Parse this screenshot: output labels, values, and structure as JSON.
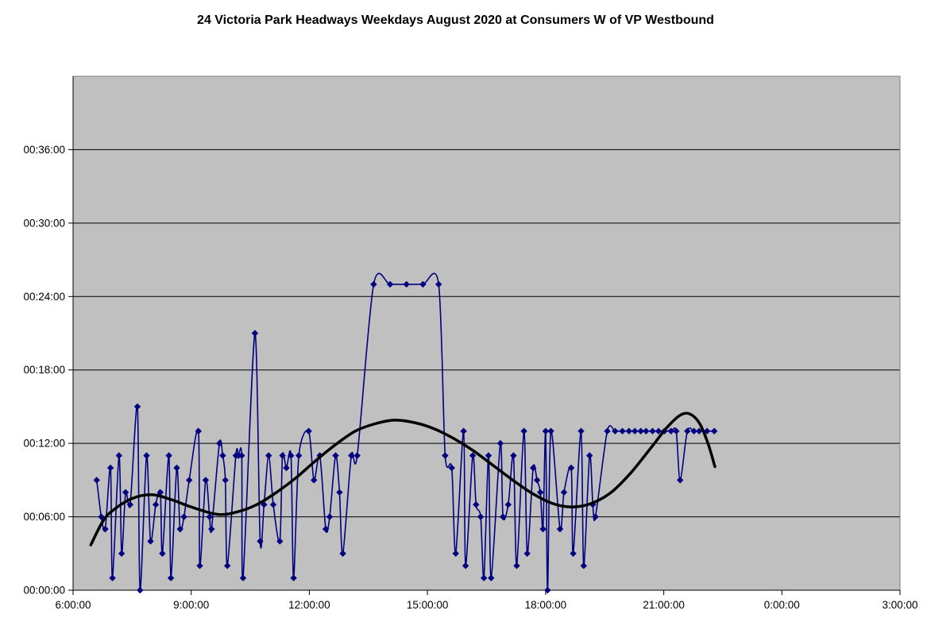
{
  "chart_data": {
    "type": "line",
    "title": "24 Victoria Park Headways Weekdays August 2020 at Consumers W of VP Westbound",
    "x_axis": {
      "tick_labels": [
        "6:00:00",
        "9:00:00",
        "12:00:00",
        "15:00:00",
        "18:00:00",
        "21:00:00",
        "0:00:00",
        "3:00:00"
      ],
      "tick_hours": [
        6,
        9,
        12,
        15,
        18,
        21,
        24,
        27
      ],
      "range_hours": [
        6,
        27
      ]
    },
    "y_axis": {
      "tick_labels": [
        "00:00:00",
        "00:06:00",
        "00:12:00",
        "00:18:00",
        "00:24:00",
        "00:30:00",
        "00:36:00"
      ],
      "tick_minutes": [
        0,
        6,
        12,
        18,
        24,
        30,
        36
      ],
      "range_minutes": [
        0,
        42
      ],
      "grid": true
    },
    "legend": "none",
    "colors": {
      "plot_bg": "#c0c0c0",
      "grid": "#000000",
      "axis": "#000000",
      "plot_border": "#808080",
      "headways_line": "#000080",
      "trend_line": "#000000",
      "text": "#000000"
    },
    "series": [
      {
        "name": "headways",
        "marker": "diamond",
        "points": [
          [
            "6:36",
            9
          ],
          [
            "6:43",
            6
          ],
          [
            "6:49",
            5
          ],
          [
            "6:57",
            10
          ],
          [
            "7:00",
            1
          ],
          [
            "7:10",
            11
          ],
          [
            "7:14",
            3
          ],
          [
            "7:20",
            8
          ],
          [
            "7:27",
            7
          ],
          [
            "7:38",
            15
          ],
          [
            "7:42",
            0
          ],
          [
            "7:52",
            11
          ],
          [
            "7:58",
            4
          ],
          [
            "8:06",
            7
          ],
          [
            "8:13",
            8
          ],
          [
            "8:16",
            3
          ],
          [
            "8:26",
            11
          ],
          [
            "8:29",
            1
          ],
          [
            "8:38",
            10
          ],
          [
            "8:43",
            5
          ],
          [
            "8:49",
            6
          ],
          [
            "8:57",
            9
          ],
          [
            "9:11",
            13
          ],
          [
            "9:13",
            2
          ],
          [
            "9:22",
            9
          ],
          [
            "9:28",
            6
          ],
          [
            "9:31",
            5
          ],
          [
            "9:43",
            12
          ],
          [
            "9:48",
            11
          ],
          [
            "9:52",
            9
          ],
          [
            "9:55",
            2
          ],
          [
            "10:08",
            11
          ],
          [
            "10:12",
            11
          ],
          [
            "10:17",
            11
          ],
          [
            "10:19",
            1
          ],
          [
            "10:37",
            21
          ],
          [
            "10:45",
            4
          ],
          [
            "10:51",
            7
          ],
          [
            "10:58",
            11
          ],
          [
            "11:05",
            7
          ],
          [
            "11:15",
            4
          ],
          [
            "11:19",
            11
          ],
          [
            "11:25",
            10
          ],
          [
            "11:32",
            11
          ],
          [
            "11:36",
            1
          ],
          [
            "11:44",
            11
          ],
          [
            "11:59",
            13
          ],
          [
            "12:07",
            9
          ],
          [
            "12:16",
            11
          ],
          [
            "12:25",
            5
          ],
          [
            "12:31",
            6
          ],
          [
            "12:40",
            11
          ],
          [
            "12:46",
            8
          ],
          [
            "12:51",
            3
          ],
          [
            "13:04",
            11
          ],
          [
            "13:13",
            11
          ],
          [
            "13:38",
            25
          ],
          [
            "14:03",
            25
          ],
          [
            "14:28",
            25
          ],
          [
            "14:53",
            25
          ],
          [
            "15:17",
            25
          ],
          [
            "15:27",
            11
          ],
          [
            "15:37",
            10
          ],
          [
            "15:43",
            3
          ],
          [
            "15:55",
            13
          ],
          [
            "15:58",
            2
          ],
          [
            "16:09",
            11
          ],
          [
            "16:14",
            7
          ],
          [
            "16:21",
            6
          ],
          [
            "16:26",
            1
          ],
          [
            "16:33",
            11
          ],
          [
            "16:37",
            1
          ],
          [
            "16:51",
            12
          ],
          [
            "16:55",
            6
          ],
          [
            "17:03",
            7
          ],
          [
            "17:11",
            11
          ],
          [
            "17:16",
            2
          ],
          [
            "17:27",
            13
          ],
          [
            "17:32",
            3
          ],
          [
            "17:41",
            10
          ],
          [
            "17:47",
            9
          ],
          [
            "17:52",
            8
          ],
          [
            "17:56",
            5
          ],
          [
            "18:00",
            13
          ],
          [
            "18:03",
            0
          ],
          [
            "18:08",
            13
          ],
          [
            "18:22",
            5
          ],
          [
            "18:28",
            8
          ],
          [
            "18:39",
            10
          ],
          [
            "18:42",
            3
          ],
          [
            "18:54",
            13
          ],
          [
            "18:58",
            2
          ],
          [
            "19:07",
            11
          ],
          [
            "19:12",
            7
          ],
          [
            "19:16",
            6
          ],
          [
            "19:34",
            13
          ],
          [
            "19:46",
            13
          ],
          [
            "19:57",
            13
          ],
          [
            "20:07",
            13
          ],
          [
            "20:16",
            13
          ],
          [
            "20:25",
            13
          ],
          [
            "20:33",
            13
          ],
          [
            "20:43",
            13
          ],
          [
            "20:52",
            13
          ],
          [
            "21:01",
            13
          ],
          [
            "21:11",
            13
          ],
          [
            "21:19",
            13
          ],
          [
            "21:25",
            9
          ],
          [
            "21:36",
            13
          ],
          [
            "21:46",
            13
          ],
          [
            "21:54",
            13
          ],
          [
            "22:06",
            13
          ],
          [
            "22:17",
            13
          ]
        ]
      },
      {
        "name": "trend",
        "marker": "none",
        "points": [
          [
            "6:27",
            3.7
          ],
          [
            "6:45",
            5.6
          ],
          [
            "7:00",
            6.5
          ],
          [
            "7:30",
            7.5
          ],
          [
            "8:00",
            7.8
          ],
          [
            "8:30",
            7.4
          ],
          [
            "9:00",
            6.8
          ],
          [
            "9:40",
            6.2
          ],
          [
            "10:10",
            6.4
          ],
          [
            "10:40",
            7.0
          ],
          [
            "11:10",
            8.0
          ],
          [
            "11:40",
            9.2
          ],
          [
            "12:10",
            10.6
          ],
          [
            "12:40",
            11.9
          ],
          [
            "13:10",
            13.0
          ],
          [
            "13:40",
            13.6
          ],
          [
            "14:10",
            13.9
          ],
          [
            "14:40",
            13.7
          ],
          [
            "15:10",
            13.2
          ],
          [
            "15:40",
            12.4
          ],
          [
            "16:10",
            11.4
          ],
          [
            "16:40",
            10.2
          ],
          [
            "17:10",
            9.0
          ],
          [
            "17:40",
            7.9
          ],
          [
            "18:10",
            7.1
          ],
          [
            "18:40",
            6.8
          ],
          [
            "19:10",
            7.1
          ],
          [
            "19:40",
            8.0
          ],
          [
            "20:10",
            9.6
          ],
          [
            "20:40",
            11.6
          ],
          [
            "21:05",
            13.3
          ],
          [
            "21:25",
            14.3
          ],
          [
            "21:40",
            14.4
          ],
          [
            "21:55",
            13.6
          ],
          [
            "22:08",
            11.9
          ],
          [
            "22:18",
            10.1
          ]
        ]
      }
    ]
  }
}
